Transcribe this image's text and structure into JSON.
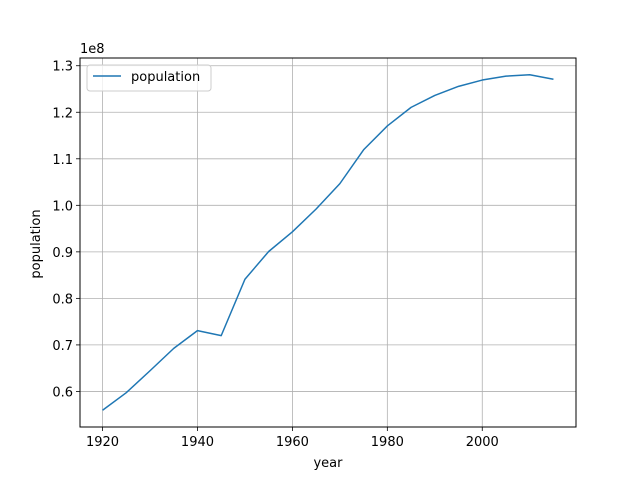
{
  "chart_data": {
    "type": "line",
    "title": "",
    "xlabel": "year",
    "ylabel": "population",
    "y_offset_label": "1e8",
    "x": [
      1920,
      1925,
      1930,
      1935,
      1940,
      1945,
      1950,
      1955,
      1960,
      1965,
      1970,
      1975,
      1980,
      1985,
      1990,
      1995,
      2000,
      2005,
      2010,
      2015
    ],
    "series": [
      {
        "name": "population",
        "color": "#1f77b4",
        "values": [
          55963053,
          59736822,
          64450005,
          69254148,
          73075071,
          71998104,
          84114574,
          90076594,
          94302000,
          99209000,
          104665000,
          111940000,
          117060000,
          121049000,
          123611000,
          125570000,
          126926000,
          127768000,
          128057000,
          127095000
        ]
      }
    ],
    "xlim": [
      1915.25,
      2019.75
    ],
    "ylim": [
      52358000,
      131662000
    ],
    "x_ticks": [
      1920,
      1940,
      1960,
      1980,
      2000
    ],
    "x_tick_labels": [
      "1920",
      "1940",
      "1960",
      "1980",
      "2000"
    ],
    "y_ticks": [
      60000000,
      70000000,
      80000000,
      90000000,
      100000000,
      110000000,
      120000000,
      130000000
    ],
    "y_tick_labels": [
      "0.6",
      "0.7",
      "0.8",
      "0.9",
      "1.0",
      "1.1",
      "1.2",
      "1.3"
    ],
    "grid": true,
    "legend_placement": "upper-left"
  }
}
